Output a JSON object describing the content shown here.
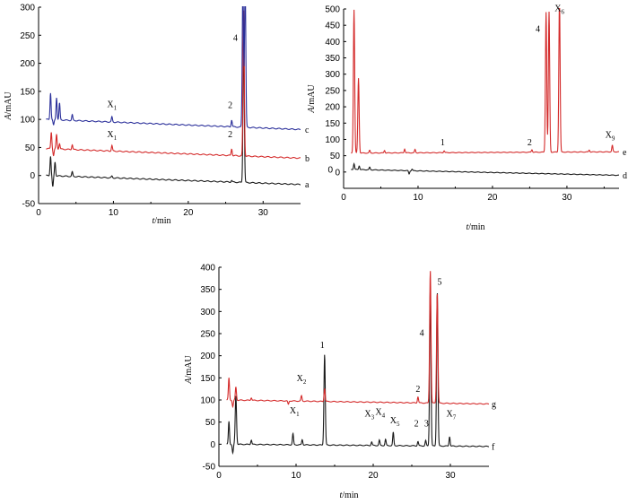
{
  "chart_data": [
    {
      "id": "top-left",
      "type": "line",
      "xlabel_italic": "t",
      "xlabel_unit": "/min",
      "ylabel_italic": "A",
      "ylabel_unit": "/mAU",
      "xlim": [
        0,
        35
      ],
      "ylim": [
        -50,
        300
      ],
      "xticks": [
        0,
        10,
        20,
        30
      ],
      "yticks": [
        -50,
        0,
        50,
        100,
        150,
        200,
        250,
        300
      ],
      "series": [
        {
          "name": "a",
          "color": "#1a1a1a",
          "baseline": 0,
          "baseline_end": -16,
          "spikes": [
            [
              1.6,
              35
            ],
            [
              1.9,
              -20
            ],
            [
              2.2,
              25
            ],
            [
              4.5,
              8
            ],
            [
              9.8,
              3
            ],
            [
              25.8,
              3
            ],
            [
              27.4,
              260
            ]
          ]
        },
        {
          "name": "b",
          "color": "#d42a2a",
          "baseline": 48,
          "baseline_end": 31,
          "spikes": [
            [
              1.7,
              30
            ],
            [
              2.0,
              -12
            ],
            [
              2.4,
              26
            ],
            [
              2.8,
              10
            ],
            [
              4.5,
              9
            ],
            [
              9.8,
              10
            ],
            [
              25.8,
              12
            ],
            [
              27.4,
              260
            ]
          ]
        },
        {
          "name": "c",
          "color": "#2a2f9a",
          "baseline": 100,
          "baseline_end": 82,
          "spikes": [
            [
              1.6,
              48
            ],
            [
              2.0,
              -10
            ],
            [
              2.4,
              40
            ],
            [
              2.8,
              30
            ],
            [
              4.5,
              10
            ],
            [
              9.8,
              9
            ],
            [
              25.8,
              12
            ],
            [
              27.3,
              260
            ],
            [
              27.6,
              260
            ]
          ]
        }
      ],
      "peak_labels": [
        {
          "text": "X",
          "sub": "1",
          "x": 9.8,
          "y": 122
        },
        {
          "text": "X",
          "sub": "1",
          "x": 9.8,
          "y": 68
        },
        {
          "text": "2",
          "sub": "",
          "x": 25.6,
          "y": 120
        },
        {
          "text": "2",
          "sub": "",
          "x": 25.6,
          "y": 68
        },
        {
          "text": "4",
          "sub": "",
          "x": 26.3,
          "y": 240
        }
      ]
    },
    {
      "id": "top-right",
      "type": "line",
      "xlabel_italic": "t",
      "xlabel_unit": "/min",
      "ylabel_italic": "A",
      "ylabel_unit": "/mAU",
      "xlim": [
        0,
        37
      ],
      "ylim": [
        -50,
        500
      ],
      "xticks": [
        0,
        10,
        20,
        30
      ],
      "yticks": [
        0,
        50,
        100,
        150,
        200,
        250,
        300,
        350,
        400,
        450,
        500
      ],
      "extra_tick_label": "0",
      "series": [
        {
          "name": "d",
          "color": "#1a1a1a",
          "baseline": 8,
          "baseline_end": -10,
          "spikes": [
            [
              1.4,
              18
            ],
            [
              2.1,
              12
            ],
            [
              3.5,
              8
            ],
            [
              8.8,
              -10
            ],
            [
              9.2,
              5
            ]
          ]
        },
        {
          "name": "e",
          "color": "#d42a2a",
          "baseline": 58,
          "baseline_end": 62,
          "spikes": [
            [
              1.4,
              440
            ],
            [
              2.0,
              230
            ],
            [
              3.5,
              8
            ],
            [
              5.5,
              8
            ],
            [
              8.2,
              12
            ],
            [
              9.6,
              10
            ],
            [
              13.5,
              6
            ],
            [
              25.3,
              8
            ],
            [
              27.2,
              430
            ],
            [
              27.6,
              430
            ],
            [
              29.0,
              470
            ],
            [
              33.0,
              6
            ],
            [
              36.1,
              20
            ]
          ]
        }
      ],
      "peak_labels": [
        {
          "text": "1",
          "sub": "",
          "x": 13.3,
          "y": 82
        },
        {
          "text": "2",
          "sub": "",
          "x": 25.0,
          "y": 82
        },
        {
          "text": "4",
          "sub": "",
          "x": 26.1,
          "y": 430
        },
        {
          "text": "X",
          "sub": "6",
          "x": 29.0,
          "y": 493
        },
        {
          "text": "X",
          "sub": "9",
          "x": 35.8,
          "y": 106
        }
      ]
    },
    {
      "id": "bottom",
      "type": "line",
      "xlabel_italic": "t",
      "xlabel_unit": "/min",
      "ylabel_italic": "A",
      "ylabel_unit": "/mAU",
      "xlim": [
        0,
        35
      ],
      "ylim": [
        -50,
        400
      ],
      "xticks": [
        0,
        10,
        20,
        30
      ],
      "yticks": [
        -50,
        0,
        50,
        100,
        150,
        200,
        250,
        300,
        350,
        400
      ],
      "series": [
        {
          "name": "f",
          "color": "#1a1a1a",
          "baseline": 0,
          "baseline_end": -5,
          "spikes": [
            [
              1.3,
              52
            ],
            [
              1.8,
              -20
            ],
            [
              2.2,
              110
            ],
            [
              4.2,
              10
            ],
            [
              9.6,
              25
            ],
            [
              10.8,
              12
            ],
            [
              13.7,
              205
            ],
            [
              19.8,
              8
            ],
            [
              20.8,
              12
            ],
            [
              21.6,
              14
            ],
            [
              22.6,
              30
            ],
            [
              25.8,
              10
            ],
            [
              26.8,
              12
            ],
            [
              27.4,
              360
            ],
            [
              28.3,
              350
            ],
            [
              29.9,
              22
            ]
          ]
        },
        {
          "name": "g",
          "color": "#d42a2a",
          "baseline": 100,
          "baseline_end": 91,
          "spikes": [
            [
              1.3,
              50
            ],
            [
              1.8,
              -15
            ],
            [
              2.2,
              30
            ],
            [
              4.2,
              6
            ],
            [
              9.0,
              -8
            ],
            [
              10.7,
              12
            ],
            [
              13.7,
              30
            ],
            [
              25.8,
              14
            ],
            [
              27.4,
              300
            ],
            [
              28.3,
              250
            ]
          ]
        }
      ],
      "peak_labels": [
        {
          "text": "X",
          "sub": "2",
          "x": 10.7,
          "y": 143
        },
        {
          "text": "X",
          "sub": "1",
          "x": 9.8,
          "y": 70
        },
        {
          "text": "1",
          "sub": "",
          "x": 13.4,
          "y": 218
        },
        {
          "text": "X",
          "sub": "3",
          "x": 19.5,
          "y": 62
        },
        {
          "text": "X",
          "sub": "4",
          "x": 20.9,
          "y": 67
        },
        {
          "text": "X",
          "sub": "5",
          "x": 22.8,
          "y": 47
        },
        {
          "text": "2",
          "sub": "",
          "x": 25.8,
          "y": 118
        },
        {
          "text": "2",
          "sub": "",
          "x": 25.6,
          "y": 40
        },
        {
          "text": "3",
          "sub": "",
          "x": 26.9,
          "y": 40
        },
        {
          "text": "4",
          "sub": "",
          "x": 26.3,
          "y": 245
        },
        {
          "text": "5",
          "sub": "",
          "x": 28.6,
          "y": 360
        },
        {
          "text": "X",
          "sub": "7",
          "x": 30.1,
          "y": 62
        }
      ]
    }
  ]
}
